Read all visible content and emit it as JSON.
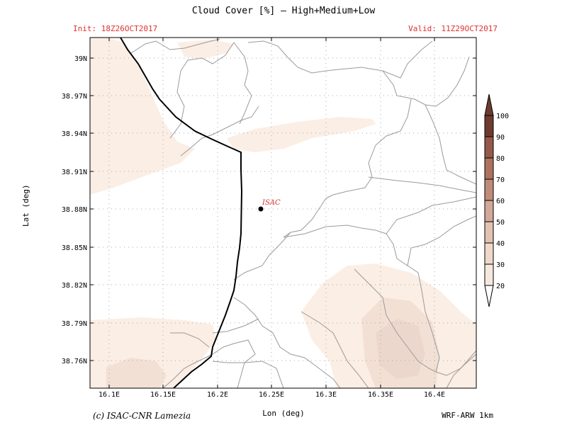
{
  "header": {
    "title": "Cloud Cover [%] — High+Medium+Low",
    "init": "Init: 18Z26OCT2017",
    "valid": "Valid: 11Z29OCT2017"
  },
  "axes": {
    "x_label": "Lon (deg)",
    "y_label": "Lat (deg)",
    "x_ticks": [
      "16.1E",
      "16.15E",
      "16.2E",
      "16.25E",
      "16.3E",
      "16.35E",
      "16.4E"
    ],
    "y_ticks": [
      "39N",
      "38.97N",
      "38.94N",
      "38.91N",
      "38.88N",
      "38.85N",
      "38.82N",
      "38.79N",
      "38.76N"
    ]
  },
  "station": {
    "label": "ISAC"
  },
  "colorbar": {
    "levels": [
      "20",
      "30",
      "40",
      "50",
      "60",
      "70",
      "80",
      "90",
      "100"
    ],
    "colors": [
      "#fdf7f2",
      "#f6e8de",
      "#efd8cb",
      "#e2c2b2",
      "#d2a898",
      "#c08c7a",
      "#ad7361",
      "#94594a",
      "#6e3b30"
    ]
  },
  "footer": {
    "credit": "(c) ISAC-CNR Lamezia",
    "model": "WRF-ARW 1km"
  },
  "colors": {
    "light_cloud": "#fbeee4",
    "medium_cloud": "#f3e0d4",
    "dark_cloud": "#e8d0c6",
    "coastline": "#000000",
    "boundaries": "#9a9a9a",
    "annotation": "#e03030"
  }
}
